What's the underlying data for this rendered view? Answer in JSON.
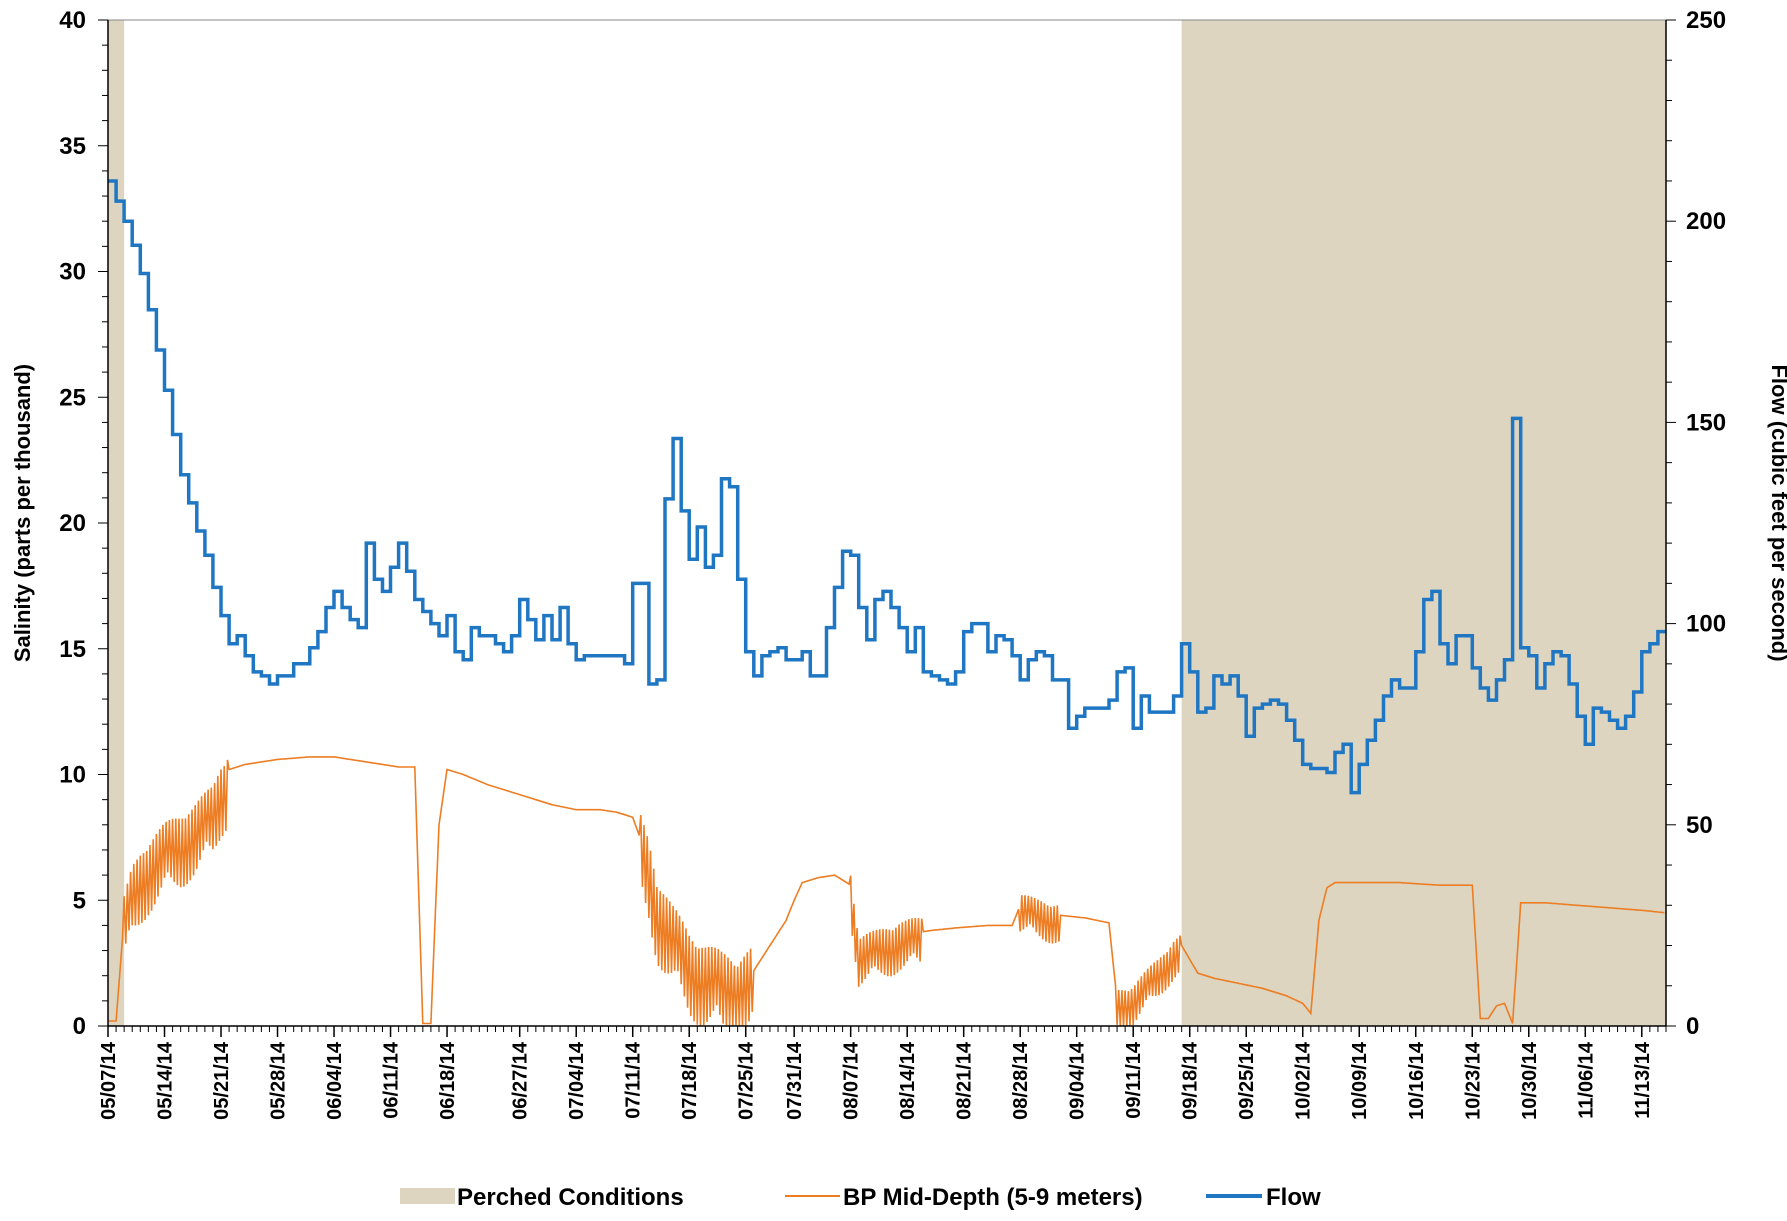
{
  "chart_data": {
    "type": "line",
    "title": "",
    "ylabel": "Salinity (parts per thousand)",
    "y2label": "Flow (cubic feet per second)",
    "ylim": [
      0,
      40
    ],
    "y2lim": [
      0,
      250
    ],
    "yticks": [
      0,
      5,
      10,
      15,
      20,
      25,
      30,
      35,
      40
    ],
    "y2ticks": [
      0,
      50,
      100,
      150,
      200,
      250
    ],
    "xrange": [
      "2014-05-07",
      "2014-11-16"
    ],
    "xtick_labels": [
      "05/07/14",
      "05/14/14",
      "05/21/14",
      "05/28/14",
      "06/04/14",
      "06/11/14",
      "06/18/14",
      "06/27/14",
      "07/04/14",
      "07/11/14",
      "07/18/14",
      "07/25/14",
      "07/31/14",
      "08/07/14",
      "08/14/14",
      "08/21/14",
      "08/28/14",
      "09/04/14",
      "09/11/14",
      "09/18/14",
      "09/25/14",
      "10/02/14",
      "10/09/14",
      "10/16/14",
      "10/23/14",
      "10/30/14",
      "11/06/14",
      "11/13/14"
    ],
    "legend_position": "bottom",
    "colors": {
      "perched": "#ddd5c0",
      "salinity": "#ed7d23",
      "flow": "#1f77c4"
    },
    "perched_periods": [
      {
        "start": "2014-05-07",
        "end": "2014-05-09"
      },
      {
        "start": "2014-09-17",
        "end": "2014-11-16"
      }
    ],
    "series": [
      {
        "name": "Flow",
        "axis": "right",
        "style": "step",
        "points": [
          [
            "2014-05-07",
            210
          ],
          [
            "2014-05-08",
            205
          ],
          [
            "2014-05-09",
            200
          ],
          [
            "2014-05-10",
            194
          ],
          [
            "2014-05-11",
            187
          ],
          [
            "2014-05-12",
            178
          ],
          [
            "2014-05-13",
            168
          ],
          [
            "2014-05-14",
            158
          ],
          [
            "2014-05-15",
            147
          ],
          [
            "2014-05-16",
            137
          ],
          [
            "2014-05-17",
            130
          ],
          [
            "2014-05-18",
            123
          ],
          [
            "2014-05-19",
            117
          ],
          [
            "2014-05-20",
            109
          ],
          [
            "2014-05-21",
            102
          ],
          [
            "2014-05-22",
            95
          ],
          [
            "2014-05-23",
            97
          ],
          [
            "2014-05-24",
            92
          ],
          [
            "2014-05-25",
            88
          ],
          [
            "2014-05-26",
            87
          ],
          [
            "2014-05-27",
            85
          ],
          [
            "2014-05-28",
            87
          ],
          [
            "2014-05-30",
            90
          ],
          [
            "2014-06-01",
            94
          ],
          [
            "2014-06-02",
            98
          ],
          [
            "2014-06-03",
            104
          ],
          [
            "2014-06-04",
            108
          ],
          [
            "2014-06-05",
            104
          ],
          [
            "2014-06-06",
            101
          ],
          [
            "2014-06-07",
            99
          ],
          [
            "2014-06-08",
            120
          ],
          [
            "2014-06-09",
            111
          ],
          [
            "2014-06-10",
            108
          ],
          [
            "2014-06-11",
            114
          ],
          [
            "2014-06-12",
            120
          ],
          [
            "2014-06-13",
            113
          ],
          [
            "2014-06-14",
            106
          ],
          [
            "2014-06-15",
            103
          ],
          [
            "2014-06-16",
            100
          ],
          [
            "2014-06-17",
            97
          ],
          [
            "2014-06-18",
            102
          ],
          [
            "2014-06-19",
            93
          ],
          [
            "2014-06-20",
            91
          ],
          [
            "2014-06-21",
            99
          ],
          [
            "2014-06-22",
            97
          ],
          [
            "2014-06-24",
            95
          ],
          [
            "2014-06-25",
            93
          ],
          [
            "2014-06-26",
            97
          ],
          [
            "2014-06-27",
            106
          ],
          [
            "2014-06-28",
            101
          ],
          [
            "2014-06-29",
            96
          ],
          [
            "2014-06-30",
            102
          ],
          [
            "2014-07-01",
            96
          ],
          [
            "2014-07-02",
            104
          ],
          [
            "2014-07-03",
            95
          ],
          [
            "2014-07-04",
            91
          ],
          [
            "2014-07-05",
            92
          ],
          [
            "2014-07-10",
            90
          ],
          [
            "2014-07-11",
            110
          ],
          [
            "2014-07-13",
            85
          ],
          [
            "2014-07-14",
            86
          ],
          [
            "2014-07-15",
            131
          ],
          [
            "2014-07-16",
            146
          ],
          [
            "2014-07-17",
            128
          ],
          [
            "2014-07-18",
            116
          ],
          [
            "2014-07-19",
            124
          ],
          [
            "2014-07-20",
            114
          ],
          [
            "2014-07-21",
            117
          ],
          [
            "2014-07-22",
            136
          ],
          [
            "2014-07-23",
            134
          ],
          [
            "2014-07-24",
            111
          ],
          [
            "2014-07-25",
            93
          ],
          [
            "2014-07-26",
            87
          ],
          [
            "2014-07-27",
            92
          ],
          [
            "2014-07-28",
            93
          ],
          [
            "2014-07-29",
            94
          ],
          [
            "2014-07-30",
            91
          ],
          [
            "2014-08-01",
            93
          ],
          [
            "2014-08-02",
            87
          ],
          [
            "2014-08-04",
            99
          ],
          [
            "2014-08-05",
            109
          ],
          [
            "2014-08-06",
            118
          ],
          [
            "2014-08-07",
            117
          ],
          [
            "2014-08-08",
            104
          ],
          [
            "2014-08-09",
            96
          ],
          [
            "2014-08-10",
            106
          ],
          [
            "2014-08-11",
            108
          ],
          [
            "2014-08-12",
            104
          ],
          [
            "2014-08-13",
            99
          ],
          [
            "2014-08-14",
            93
          ],
          [
            "2014-08-15",
            99
          ],
          [
            "2014-08-16",
            88
          ],
          [
            "2014-08-17",
            87
          ],
          [
            "2014-08-18",
            86
          ],
          [
            "2014-08-19",
            85
          ],
          [
            "2014-08-20",
            88
          ],
          [
            "2014-08-21",
            98
          ],
          [
            "2014-08-22",
            100
          ],
          [
            "2014-08-24",
            93
          ],
          [
            "2014-08-25",
            97
          ],
          [
            "2014-08-26",
            96
          ],
          [
            "2014-08-27",
            92
          ],
          [
            "2014-08-28",
            86
          ],
          [
            "2014-08-29",
            91
          ],
          [
            "2014-08-30",
            93
          ],
          [
            "2014-08-31",
            92
          ],
          [
            "2014-09-01",
            86
          ],
          [
            "2014-09-02",
            86
          ],
          [
            "2014-09-03",
            74
          ],
          [
            "2014-09-04",
            77
          ],
          [
            "2014-09-05",
            79
          ],
          [
            "2014-09-08",
            81
          ],
          [
            "2014-09-09",
            88
          ],
          [
            "2014-09-10",
            89
          ],
          [
            "2014-09-11",
            74
          ],
          [
            "2014-09-12",
            82
          ],
          [
            "2014-09-13",
            78
          ],
          [
            "2014-09-16",
            82
          ],
          [
            "2014-09-17",
            95
          ],
          [
            "2014-09-18",
            88
          ],
          [
            "2014-09-19",
            78
          ],
          [
            "2014-09-20",
            79
          ],
          [
            "2014-09-21",
            87
          ],
          [
            "2014-09-22",
            85
          ],
          [
            "2014-09-23",
            87
          ],
          [
            "2014-09-24",
            82
          ],
          [
            "2014-09-25",
            72
          ],
          [
            "2014-09-26",
            79
          ],
          [
            "2014-09-27",
            80
          ],
          [
            "2014-09-28",
            81
          ],
          [
            "2014-09-29",
            80
          ],
          [
            "2014-09-30",
            76
          ],
          [
            "2014-10-01",
            71
          ],
          [
            "2014-10-02",
            65
          ],
          [
            "2014-10-03",
            64
          ],
          [
            "2014-10-05",
            63
          ],
          [
            "2014-10-06",
            68
          ],
          [
            "2014-10-07",
            70
          ],
          [
            "2014-10-08",
            58
          ],
          [
            "2014-10-09",
            65
          ],
          [
            "2014-10-10",
            71
          ],
          [
            "2014-10-11",
            76
          ],
          [
            "2014-10-12",
            82
          ],
          [
            "2014-10-13",
            86
          ],
          [
            "2014-10-14",
            84
          ],
          [
            "2014-10-16",
            93
          ],
          [
            "2014-10-17",
            106
          ],
          [
            "2014-10-18",
            108
          ],
          [
            "2014-10-19",
            95
          ],
          [
            "2014-10-20",
            90
          ],
          [
            "2014-10-21",
            97
          ],
          [
            "2014-10-23",
            89
          ],
          [
            "2014-10-24",
            84
          ],
          [
            "2014-10-25",
            81
          ],
          [
            "2014-10-26",
            86
          ],
          [
            "2014-10-27",
            91
          ],
          [
            "2014-10-28",
            151
          ],
          [
            "2014-10-29",
            94
          ],
          [
            "2014-10-30",
            92
          ],
          [
            "2014-10-31",
            84
          ],
          [
            "2014-11-01",
            90
          ],
          [
            "2014-11-02",
            93
          ],
          [
            "2014-11-03",
            92
          ],
          [
            "2014-11-04",
            85
          ],
          [
            "2014-11-05",
            77
          ],
          [
            "2014-11-06",
            70
          ],
          [
            "2014-11-07",
            79
          ],
          [
            "2014-11-08",
            78
          ],
          [
            "2014-11-09",
            76
          ],
          [
            "2014-11-10",
            74
          ],
          [
            "2014-11-11",
            77
          ],
          [
            "2014-11-12",
            83
          ],
          [
            "2014-11-13",
            93
          ],
          [
            "2014-11-14",
            95
          ],
          [
            "2014-11-15",
            98
          ],
          [
            "2014-11-16",
            98
          ]
        ]
      },
      {
        "name": "BP Mid-Depth (5-9 meters)",
        "axis": "left",
        "style": "line",
        "points": [
          [
            "2014-05-07",
            0.2
          ],
          [
            "2014-05-08",
            0.2
          ],
          [
            "2014-05-09",
            4.3
          ],
          [
            "2014-05-10",
            5.5
          ],
          [
            "2014-05-11",
            6.1
          ],
          [
            "2014-05-12",
            6.6
          ],
          [
            "2014-05-13",
            6.9
          ],
          [
            "2014-05-14",
            7.2
          ],
          [
            "2014-05-15",
            7.4
          ],
          [
            "2014-05-16",
            7.6
          ],
          [
            "2014-05-17",
            7.9
          ],
          [
            "2014-05-18",
            8.1
          ],
          [
            "2014-05-19",
            8.4
          ],
          [
            "2014-05-20",
            8.7
          ],
          [
            "2014-05-21",
            9.6
          ],
          [
            "2014-05-22",
            10.2
          ],
          [
            "2014-05-23",
            10.3
          ],
          [
            "2014-05-24",
            10.4
          ],
          [
            "2014-05-26",
            10.5
          ],
          [
            "2014-05-28",
            10.6
          ],
          [
            "2014-06-01",
            10.7
          ],
          [
            "2014-06-04",
            10.7
          ],
          [
            "2014-06-08",
            10.5
          ],
          [
            "2014-06-10",
            10.4
          ],
          [
            "2014-06-12",
            10.3
          ],
          [
            "2014-06-14",
            10.3
          ],
          [
            "2014-06-15",
            0.1
          ],
          [
            "2014-06-16",
            0.1
          ],
          [
            "2014-06-17",
            8.0
          ],
          [
            "2014-06-18",
            10.2
          ],
          [
            "2014-06-20",
            10.0
          ],
          [
            "2014-06-23",
            9.6
          ],
          [
            "2014-06-27",
            9.2
          ],
          [
            "2014-07-01",
            8.8
          ],
          [
            "2014-07-04",
            8.6
          ],
          [
            "2014-07-07",
            8.6
          ],
          [
            "2014-07-09",
            8.5
          ],
          [
            "2014-07-11",
            8.3
          ],
          [
            "2014-07-13",
            6.5
          ],
          [
            "2014-07-14",
            5.0
          ],
          [
            "2014-07-16",
            3.8
          ],
          [
            "2014-07-18",
            2.8
          ],
          [
            "2014-07-20",
            2.3
          ],
          [
            "2014-07-22",
            2.0
          ],
          [
            "2014-07-24",
            1.8
          ],
          [
            "2014-07-26",
            2.2
          ],
          [
            "2014-07-28",
            3.2
          ],
          [
            "2014-07-30",
            4.2
          ],
          [
            "2014-07-31",
            5.0
          ],
          [
            "2014-08-01",
            5.7
          ],
          [
            "2014-08-03",
            5.9
          ],
          [
            "2014-08-05",
            6.0
          ],
          [
            "2014-08-07",
            5.6
          ],
          [
            "2014-08-08",
            3.0
          ],
          [
            "2014-08-10",
            3.2
          ],
          [
            "2014-08-13",
            3.6
          ],
          [
            "2014-08-17",
            3.8
          ],
          [
            "2014-08-20",
            3.9
          ],
          [
            "2014-08-24",
            4.0
          ],
          [
            "2014-08-27",
            4.0
          ],
          [
            "2014-08-28",
            4.8
          ],
          [
            "2014-08-30",
            4.6
          ],
          [
            "2014-09-02",
            4.4
          ],
          [
            "2014-09-05",
            4.3
          ],
          [
            "2014-09-08",
            4.1
          ],
          [
            "2014-09-09",
            1.0
          ],
          [
            "2014-09-11",
            1.2
          ],
          [
            "2014-09-14",
            2.2
          ],
          [
            "2014-09-16",
            3.0
          ],
          [
            "2014-09-17",
            3.2
          ],
          [
            "2014-09-19",
            2.1
          ],
          [
            "2014-09-21",
            1.9
          ],
          [
            "2014-09-24",
            1.7
          ],
          [
            "2014-09-27",
            1.5
          ],
          [
            "2014-09-30",
            1.2
          ],
          [
            "2014-10-02",
            0.9
          ],
          [
            "2014-10-03",
            0.5
          ],
          [
            "2014-10-04",
            4.2
          ],
          [
            "2014-10-05",
            5.5
          ],
          [
            "2014-10-06",
            5.7
          ],
          [
            "2014-10-09",
            5.7
          ],
          [
            "2014-10-14",
            5.7
          ],
          [
            "2014-10-19",
            5.6
          ],
          [
            "2014-10-22",
            5.6
          ],
          [
            "2014-10-23",
            5.6
          ],
          [
            "2014-10-24",
            0.3
          ],
          [
            "2014-10-25",
            0.3
          ],
          [
            "2014-10-26",
            0.8
          ],
          [
            "2014-10-27",
            0.9
          ],
          [
            "2014-10-28",
            0.1
          ],
          [
            "2014-10-29",
            4.9
          ],
          [
            "2014-11-01",
            4.9
          ],
          [
            "2014-11-05",
            4.8
          ],
          [
            "2014-11-09",
            4.7
          ],
          [
            "2014-11-13",
            4.6
          ],
          [
            "2014-11-16",
            4.5
          ]
        ]
      }
    ],
    "legend": {
      "perched_label": "Perched Conditions",
      "salinity_label": "BP Mid-Depth (5-9 meters)",
      "flow_label": "Flow"
    }
  }
}
